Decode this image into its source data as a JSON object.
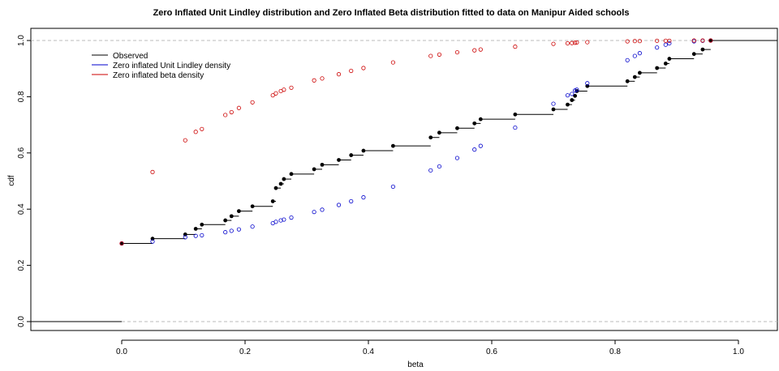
{
  "chart_data": {
    "type": "scatter",
    "title": "Zero Inflated Unit Lindley distribution and Zero Inflated Beta distribution fitted to data on Manipur Aided schools",
    "xlabel": "beta",
    "ylabel": "cdf",
    "xlim": [
      -0.13,
      1.07
    ],
    "ylim": [
      -0.02,
      1.05
    ],
    "x_ticks": [
      "0.0",
      "0.2",
      "0.4",
      "0.6",
      "0.8",
      "1.0"
    ],
    "y_ticks": [
      "0.0",
      "0.2",
      "0.4",
      "0.6",
      "0.8",
      "1.0"
    ],
    "reference_lines": [
      0,
      1
    ],
    "legend": {
      "position": "top-left"
    },
    "colors": {
      "observed": "#000000",
      "lindley": "#0000cc",
      "beta": "#cc0000",
      "reference": "#bbbbbb"
    },
    "series": [
      {
        "name": "Observed",
        "kind": "step",
        "x": [
          0,
          0.05,
          0.103,
          0.12,
          0.13,
          0.168,
          0.178,
          0.19,
          0.212,
          0.245,
          0.25,
          0.258,
          0.263,
          0.275,
          0.312,
          0.325,
          0.352,
          0.372,
          0.392,
          0.44,
          0.501,
          0.515,
          0.544,
          0.572,
          0.582,
          0.638,
          0.7,
          0.723,
          0.73,
          0.735,
          0.738,
          0.755,
          0.82,
          0.832,
          0.84,
          0.868,
          0.882,
          0.888,
          0.928,
          0.942,
          0.955
        ],
        "y": [
          0.278,
          0.295,
          0.31,
          0.33,
          0.345,
          0.36,
          0.375,
          0.393,
          0.41,
          0.428,
          0.475,
          0.49,
          0.507,
          0.525,
          0.542,
          0.558,
          0.575,
          0.592,
          0.608,
          0.625,
          0.655,
          0.672,
          0.688,
          0.705,
          0.72,
          0.737,
          0.755,
          0.772,
          0.788,
          0.803,
          0.82,
          0.838,
          0.855,
          0.87,
          0.885,
          0.902,
          0.918,
          0.935,
          0.952,
          0.968,
          1.0
        ]
      },
      {
        "name": "Zero inflated Unit Lindley density",
        "kind": "points",
        "x": [
          0,
          0.05,
          0.103,
          0.12,
          0.13,
          0.168,
          0.178,
          0.19,
          0.212,
          0.245,
          0.25,
          0.258,
          0.263,
          0.275,
          0.312,
          0.325,
          0.352,
          0.372,
          0.392,
          0.44,
          0.501,
          0.515,
          0.544,
          0.572,
          0.582,
          0.638,
          0.7,
          0.723,
          0.73,
          0.735,
          0.738,
          0.755,
          0.82,
          0.832,
          0.84,
          0.868,
          0.882,
          0.888,
          0.928,
          0.942,
          0.955
        ],
        "y": [
          0.278,
          0.285,
          0.3,
          0.305,
          0.307,
          0.318,
          0.323,
          0.328,
          0.338,
          0.35,
          0.355,
          0.36,
          0.363,
          0.37,
          0.39,
          0.398,
          0.415,
          0.428,
          0.442,
          0.48,
          0.538,
          0.552,
          0.582,
          0.612,
          0.625,
          0.69,
          0.775,
          0.805,
          0.81,
          0.822,
          0.825,
          0.848,
          0.93,
          0.945,
          0.955,
          0.975,
          0.985,
          0.99,
          0.997,
          0.999,
          1.0
        ]
      },
      {
        "name": "Zero inflated beta density",
        "kind": "points",
        "x": [
          0,
          0.05,
          0.103,
          0.12,
          0.13,
          0.168,
          0.178,
          0.19,
          0.212,
          0.245,
          0.25,
          0.258,
          0.263,
          0.275,
          0.312,
          0.325,
          0.352,
          0.372,
          0.392,
          0.44,
          0.501,
          0.515,
          0.544,
          0.572,
          0.582,
          0.638,
          0.7,
          0.723,
          0.73,
          0.735,
          0.738,
          0.755,
          0.82,
          0.832,
          0.84,
          0.868,
          0.882,
          0.888,
          0.928,
          0.942,
          0.955
        ],
        "y": [
          0.278,
          0.532,
          0.645,
          0.675,
          0.685,
          0.735,
          0.745,
          0.76,
          0.78,
          0.805,
          0.812,
          0.82,
          0.825,
          0.832,
          0.858,
          0.865,
          0.88,
          0.892,
          0.902,
          0.922,
          0.945,
          0.95,
          0.958,
          0.965,
          0.968,
          0.978,
          0.988,
          0.99,
          0.991,
          0.992,
          0.993,
          0.994,
          0.997,
          0.998,
          0.998,
          0.999,
          0.999,
          0.999,
          1.0,
          1.0,
          1.0
        ]
      }
    ]
  }
}
